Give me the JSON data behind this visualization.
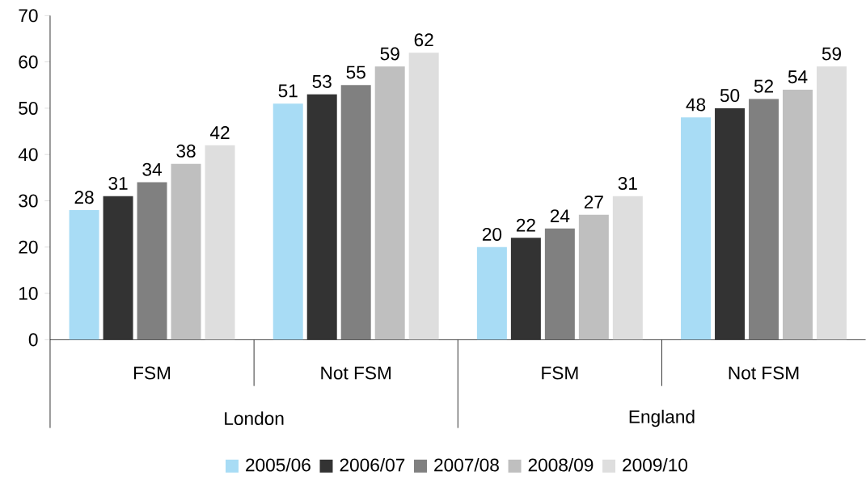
{
  "chart_data": {
    "type": "bar",
    "categories": [
      "FSM",
      "Not FSM",
      "FSM",
      "Not FSM"
    ],
    "annotations": [
      "London",
      "England"
    ],
    "series": [
      {
        "name": "2005/06",
        "color": "#a8dcf5",
        "values": [
          28,
          51,
          20,
          48
        ]
      },
      {
        "name": "2006/07",
        "color": "#333333",
        "values": [
          31,
          53,
          22,
          50
        ]
      },
      {
        "name": "2007/08",
        "color": "#808080",
        "values": [
          34,
          55,
          24,
          52
        ]
      },
      {
        "name": "2008/09",
        "color": "#bfbfbf",
        "values": [
          38,
          59,
          27,
          54
        ]
      },
      {
        "name": "2009/10",
        "color": "#dedede",
        "values": [
          42,
          62,
          31,
          59
        ]
      }
    ],
    "ylim": [
      0,
      70
    ],
    "yticks": [
      0,
      10,
      20,
      30,
      40,
      50,
      60,
      70
    ],
    "data_labels": true,
    "legend": "bottom"
  }
}
